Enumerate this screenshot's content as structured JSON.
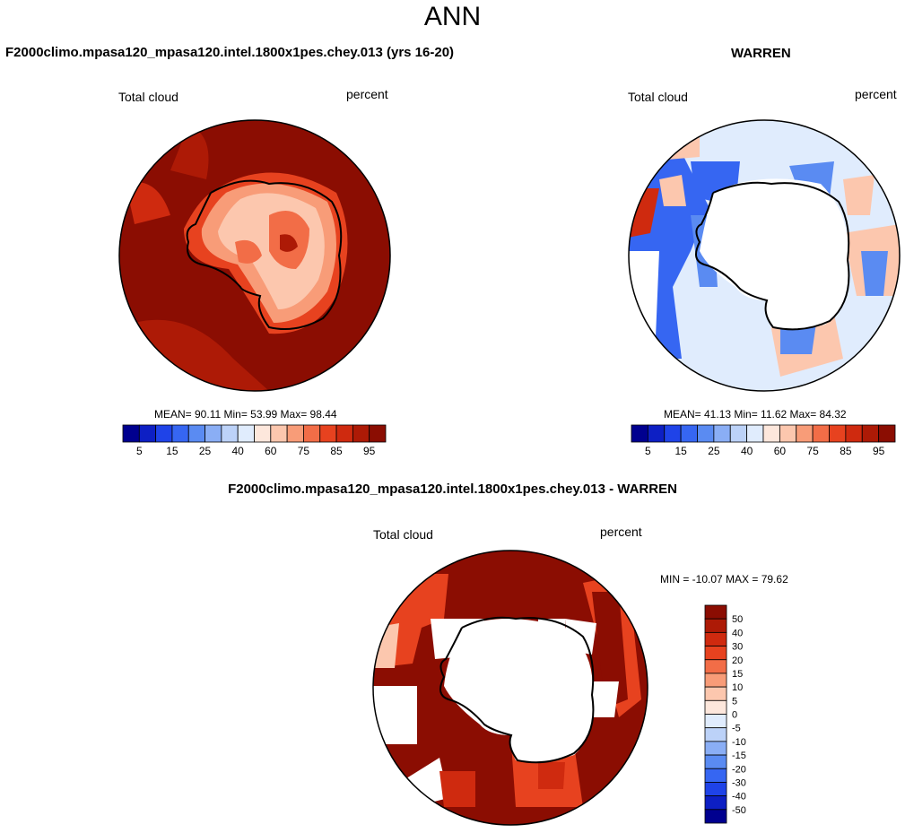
{
  "title": "ANN",
  "panels": {
    "model": {
      "title": "F2000climo.mpasa120_mpasa120.intel.1800x1pes.chey.013 (yrs 16-20)",
      "left_label": "Total cloud",
      "right_label": "percent",
      "stats": "MEAN=  90.11  Min=  53.99  Max=  98.44"
    },
    "obs": {
      "title": "WARREN",
      "left_label": "Total cloud",
      "right_label": "percent",
      "stats": "MEAN=  41.13  Min=  11.62  Max=  84.32"
    },
    "diff": {
      "title": "F2000climo.mpasa120_mpasa120.intel.1800x1pes.chey.013 - WARREN",
      "left_label": "Total cloud",
      "right_label": "percent",
      "stats": "MIN = -10.07 MAX =  79.62"
    }
  },
  "colors": {
    "seq": [
      "#00008f",
      "#0d1fc4",
      "#1f43e8",
      "#3666f2",
      "#5a8bf2",
      "#8aaef5",
      "#bcd2f8",
      "#e0ecfd",
      "#fde7dc",
      "#fcc7ae",
      "#f89c78",
      "#f26d47",
      "#e7421f",
      "#cf2a0f",
      "#ad1a06",
      "#8b0d02"
    ],
    "div": [
      "#00008f",
      "#0d1fc4",
      "#1f43e8",
      "#3666f2",
      "#5a8bf2",
      "#8aaef5",
      "#bcd2f8",
      "#e0ecfd",
      "#fde7dc",
      "#fcc7ae",
      "#f89c78",
      "#f26d47",
      "#e7421f",
      "#cf2a0f",
      "#ad1a06",
      "#8b0d02"
    ]
  },
  "chart_data": [
    {
      "type": "polar-contour-map",
      "name": "model",
      "title": "F2000climo.mpasa120_mpasa120.intel.1800x1pes.chey.013 (yrs 16-20)",
      "variable": "Total cloud",
      "units": "percent",
      "mean": 90.11,
      "min": 53.99,
      "max": 98.44,
      "colorbar_levels": [
        5,
        10,
        15,
        20,
        25,
        30,
        40,
        50,
        60,
        65,
        75,
        80,
        85,
        90,
        95
      ],
      "colorbar_tick_labels": [
        "5",
        "15",
        "25",
        "40",
        "60",
        "75",
        "85",
        "95"
      ]
    },
    {
      "type": "polar-contour-map",
      "name": "obs",
      "title": "WARREN",
      "variable": "Total cloud",
      "units": "percent",
      "mean": 41.13,
      "min": 11.62,
      "max": 84.32,
      "colorbar_levels": [
        5,
        10,
        15,
        20,
        25,
        30,
        40,
        50,
        60,
        65,
        75,
        80,
        85,
        90,
        95
      ],
      "colorbar_tick_labels": [
        "5",
        "15",
        "25",
        "40",
        "60",
        "75",
        "85",
        "95"
      ]
    },
    {
      "type": "polar-contour-map",
      "name": "diff",
      "title": "F2000climo.mpasa120_mpasa120.intel.1800x1pes.chey.013 - WARREN",
      "variable": "Total cloud",
      "units": "percent",
      "min": -10.07,
      "max": 79.62,
      "colorbar_levels": [
        50,
        40,
        30,
        20,
        15,
        10,
        5,
        0,
        -5,
        -10,
        -15,
        -20,
        -30,
        -40,
        -50
      ],
      "colorbar_tick_labels": [
        "50",
        "40",
        "30",
        "20",
        "15",
        "10",
        "5",
        "0",
        "-5",
        "-10",
        "-15",
        "-20",
        "-30",
        "-40",
        "-50"
      ]
    }
  ]
}
